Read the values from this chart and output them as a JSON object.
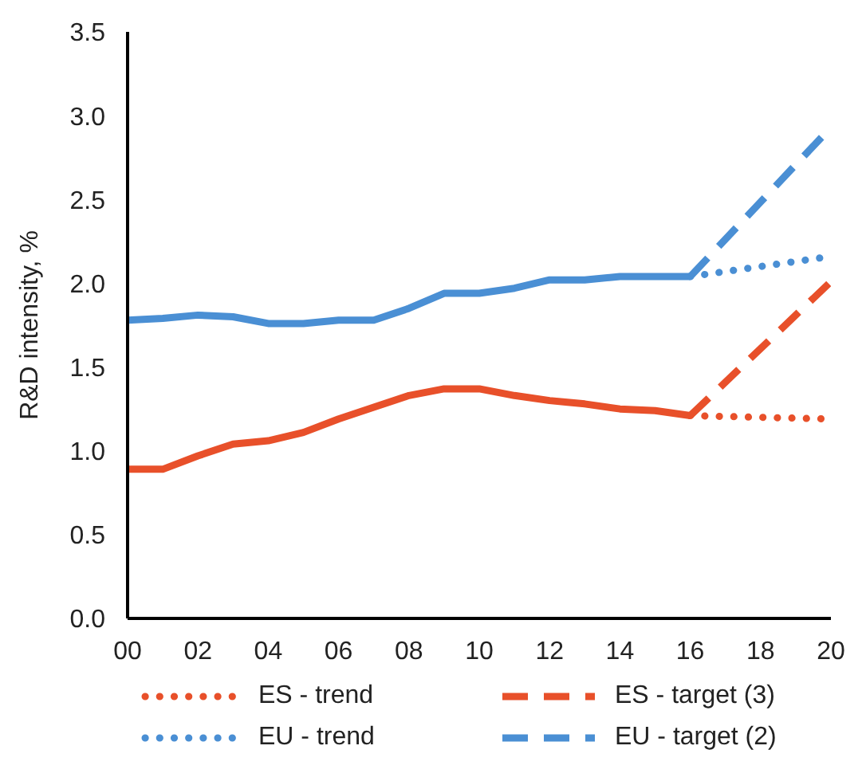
{
  "chart_data": {
    "type": "line",
    "ylabel": "R&D intensity, %",
    "xlim": [
      2000,
      2020
    ],
    "xticks": [
      {
        "value": 2000,
        "label": "00"
      },
      {
        "value": 2002,
        "label": "02"
      },
      {
        "value": 2004,
        "label": "04"
      },
      {
        "value": 2006,
        "label": "06"
      },
      {
        "value": 2008,
        "label": "08"
      },
      {
        "value": 2010,
        "label": "10"
      },
      {
        "value": 2012,
        "label": "12"
      },
      {
        "value": 2014,
        "label": "14"
      },
      {
        "value": 2016,
        "label": "16"
      },
      {
        "value": 2018,
        "label": "18"
      },
      {
        "value": 2020,
        "label": "20"
      }
    ],
    "ylim": [
      0,
      3.5
    ],
    "yticks": [
      {
        "value": 0,
        "label": "0.0"
      },
      {
        "value": 0.5,
        "label": "0.5"
      },
      {
        "value": 1,
        "label": "1.0"
      },
      {
        "value": 1.5,
        "label": "1.5"
      },
      {
        "value": 2,
        "label": "2.0"
      },
      {
        "value": 2.5,
        "label": "2.5"
      },
      {
        "value": 3,
        "label": "3.0"
      },
      {
        "value": 3.5,
        "label": "3.5"
      }
    ],
    "legend": "bottom",
    "marker": "none",
    "series": [
      {
        "color": "#4a8fd4",
        "line_style": "solid",
        "x": [
          2000,
          2001,
          2002,
          2003,
          2004,
          2005,
          2006,
          2007,
          2008,
          2009,
          2010,
          2011,
          2012,
          2013,
          2014,
          2015,
          2016
        ],
        "values": [
          1.78,
          1.79,
          1.81,
          1.8,
          1.76,
          1.76,
          1.78,
          1.78,
          1.85,
          1.94,
          1.94,
          1.97,
          2.02,
          2.02,
          2.04,
          2.04,
          2.04
        ]
      },
      {
        "color": "#e8502a",
        "line_style": "solid",
        "x": [
          2000,
          2001,
          2002,
          2003,
          2004,
          2005,
          2006,
          2007,
          2008,
          2009,
          2010,
          2011,
          2012,
          2013,
          2014,
          2015,
          2016
        ],
        "values": [
          0.89,
          0.89,
          0.97,
          1.04,
          1.06,
          1.11,
          1.19,
          1.26,
          1.33,
          1.37,
          1.37,
          1.33,
          1.3,
          1.28,
          1.25,
          1.24,
          1.21
        ]
      },
      {
        "name": "ES - trend",
        "color": "#e8502a",
        "line_style": "dotted",
        "x": [
          2016,
          2020
        ],
        "values": [
          1.21,
          1.19
        ]
      },
      {
        "name": "ES - target (3)",
        "color": "#e8502a",
        "line_style": "dashed",
        "x": [
          2016,
          2020
        ],
        "values": [
          1.21,
          2.01
        ]
      },
      {
        "name": "EU - trend",
        "color": "#4a8fd4",
        "line_style": "dotted",
        "x": [
          2016,
          2020
        ],
        "values": [
          2.04,
          2.16
        ]
      },
      {
        "name": "EU - target (2)",
        "color": "#4a8fd4",
        "line_style": "dashed",
        "x": [
          2016,
          2020
        ],
        "values": [
          2.04,
          2.93
        ]
      }
    ]
  }
}
